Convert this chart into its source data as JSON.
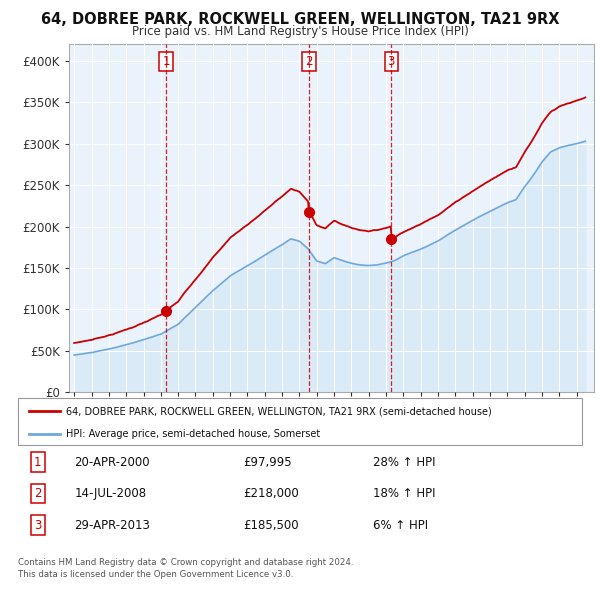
{
  "title": "64, DOBREE PARK, ROCKWELL GREEN, WELLINGTON, TA21 9RX",
  "subtitle": "Price paid vs. HM Land Registry's House Price Index (HPI)",
  "legend_line1": "64, DOBREE PARK, ROCKWELL GREEN, WELLINGTON, TA21 9RX (semi-detached house)",
  "legend_line2": "HPI: Average price, semi-detached house, Somerset",
  "footer1": "Contains HM Land Registry data © Crown copyright and database right 2024.",
  "footer2": "This data is licensed under the Open Government Licence v3.0.",
  "sales": [
    {
      "num": 1,
      "date": "20-APR-2000",
      "price": "£97,995",
      "change": "28% ↑ HPI",
      "year": 2000.3
    },
    {
      "num": 2,
      "date": "14-JUL-2008",
      "price": "£218,000",
      "change": "18% ↑ HPI",
      "year": 2008.54
    },
    {
      "num": 3,
      "date": "29-APR-2013",
      "price": "£185,500",
      "change": "6% ↑ HPI",
      "year": 2013.3
    }
  ],
  "sale_values": [
    97995,
    218000,
    185500
  ],
  "sale_years": [
    2000.3,
    2008.54,
    2013.3
  ],
  "hpi_color": "#6fa8dc",
  "hpi_fill_color": "#daeaf7",
  "price_color": "#cc0000",
  "vline_color": "#cc0000",
  "background_color": "#ffffff",
  "chart_bg_color": "#eaf2fb",
  "ylim": [
    0,
    420000
  ],
  "xlim_start": 1994.7,
  "xlim_end": 2025.0
}
